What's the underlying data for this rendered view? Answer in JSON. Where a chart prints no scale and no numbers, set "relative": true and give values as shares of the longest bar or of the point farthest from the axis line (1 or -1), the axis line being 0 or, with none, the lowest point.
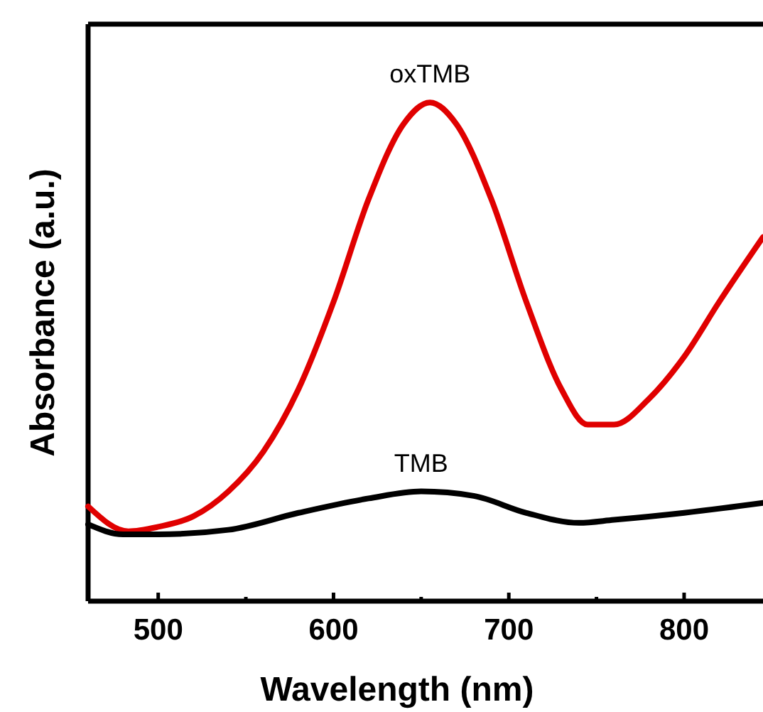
{
  "chart_data": {
    "type": "line",
    "relative": true,
    "xlabel": "Wavelength (nm)",
    "ylabel": "Absorbance (a.u.)",
    "xlim": [
      460,
      845
    ],
    "xticks": [
      500,
      {
        "value": 550,
        "label": null
      },
      600,
      {
        "value": 650,
        "label": null
      },
      700,
      {
        "value": 750,
        "label": null
      },
      800
    ],
    "series": [
      {
        "color": "#e00000",
        "x": [
          460,
          483,
          500,
          520,
          540,
          560,
          580,
          600,
          620,
          640,
          655,
          670,
          690,
          710,
          730,
          745,
          760,
          780,
          800,
          820,
          845
        ],
        "values": [
          0.19,
          0.14,
          0.149,
          0.17,
          0.22,
          0.3,
          0.425,
          0.6,
          0.806,
          0.957,
          1,
          0.957,
          0.806,
          0.6,
          0.425,
          0.354,
          0.354,
          0.406,
          0.49,
          0.6,
          0.73
        ]
      },
      {
        "color": "#000000",
        "x": [
          460,
          480,
          500,
          540,
          580,
          620,
          650,
          680,
          710,
          740,
          760,
          800,
          845
        ],
        "values": [
          0.154,
          0.134,
          0.134,
          0.143,
          0.177,
          0.206,
          0.22,
          0.211,
          0.177,
          0.157,
          0.163,
          0.177,
          0.197
        ]
      }
    ],
    "annotations": [
      "oxTMB",
      "TMB"
    ]
  }
}
